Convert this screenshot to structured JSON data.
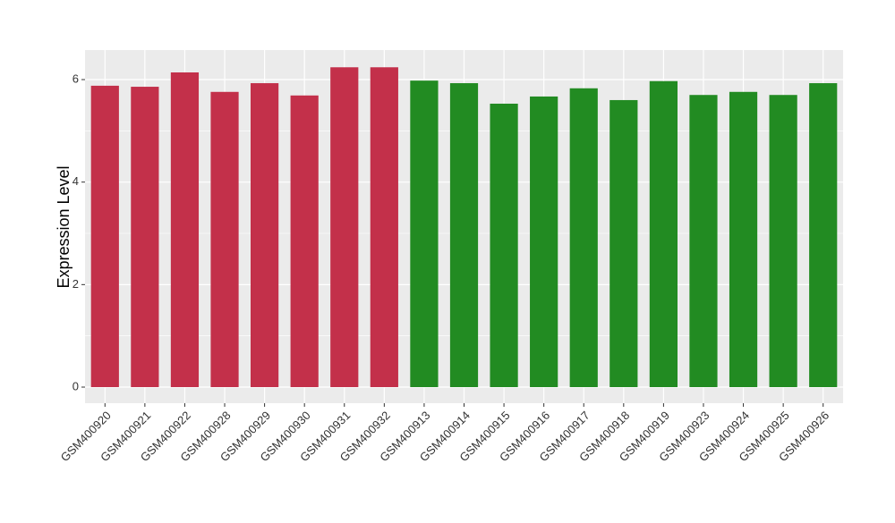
{
  "chart_data": {
    "type": "bar",
    "y_label": "Expression Level",
    "categories": [
      "GSM400920",
      "GSM400921",
      "GSM400922",
      "GSM400928",
      "GSM400929",
      "GSM400930",
      "GSM400931",
      "GSM400932",
      "GSM400913",
      "GSM400914",
      "GSM400915",
      "GSM400916",
      "GSM400917",
      "GSM400918",
      "GSM400919",
      "GSM400923",
      "GSM400924",
      "GSM400925",
      "GSM400926"
    ],
    "values": [
      5.88,
      5.86,
      6.14,
      5.76,
      5.93,
      5.69,
      6.24,
      6.24,
      5.98,
      5.93,
      5.53,
      5.67,
      5.83,
      5.6,
      5.97,
      5.7,
      5.76,
      5.7,
      5.93
    ],
    "colors": [
      "#c3304a",
      "#c3304a",
      "#c3304a",
      "#c3304a",
      "#c3304a",
      "#c3304a",
      "#c3304a",
      "#c3304a",
      "#228b22",
      "#228b22",
      "#228b22",
      "#228b22",
      "#228b22",
      "#228b22",
      "#228b22",
      "#228b22",
      "#228b22",
      "#228b22",
      "#228b22"
    ],
    "ylim": [
      -0.314,
      6.576
    ],
    "yticks": [
      0,
      2,
      4,
      6
    ],
    "grid": true
  }
}
